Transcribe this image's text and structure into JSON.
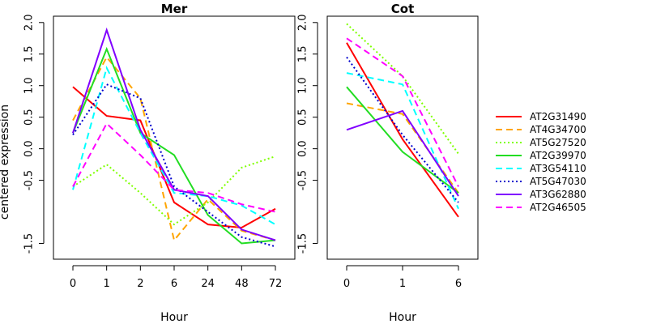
{
  "chart_data": {
    "type": "line",
    "ylabel": "centered expression",
    "ylim": [
      -1.75,
      2.1
    ],
    "yticks": [
      -1.5,
      -0.5,
      0.0,
      0.5,
      1.0,
      1.5,
      2.0
    ],
    "ytick_labels": [
      "-1.5",
      "-0.5",
      "0.0",
      "0.5",
      "1.0",
      "1.5",
      "2.0"
    ],
    "legend_position": "right",
    "grid": false,
    "series_styles": [
      {
        "name": "AT2G31490",
        "color": "#ff0000",
        "dash": "solid"
      },
      {
        "name": "AT4G34700",
        "color": "#ffa500",
        "dash": "dashed"
      },
      {
        "name": "AT5G27520",
        "color": "#7fff00",
        "dash": "dotted"
      },
      {
        "name": "AT2G39970",
        "color": "#22dd22",
        "dash": "solid"
      },
      {
        "name": "AT3G54110",
        "color": "#00ffff",
        "dash": "dashed"
      },
      {
        "name": "AT5G47030",
        "color": "#0000cd",
        "dash": "dotted"
      },
      {
        "name": "AT3G62880",
        "color": "#8000ff",
        "dash": "solid"
      },
      {
        "name": "AT2G46505",
        "color": "#ff00ff",
        "dash": "dashed"
      }
    ],
    "panels": [
      {
        "title": "Mer",
        "xlabel": "Hour",
        "categories": [
          "0",
          "1",
          "2",
          "6",
          "24",
          "48",
          "72"
        ],
        "series": [
          {
            "name": "AT2G31490",
            "values": [
              0.98,
              0.52,
              0.45,
              -0.85,
              -1.2,
              -1.25,
              -0.95
            ]
          },
          {
            "name": "AT4G34700",
            "values": [
              0.45,
              1.45,
              0.8,
              -1.45,
              -0.8,
              -1.3,
              -1.45
            ]
          },
          {
            "name": "AT5G27520",
            "values": [
              -0.6,
              -0.25,
              -0.7,
              -1.2,
              -0.85,
              -0.3,
              -0.12
            ]
          },
          {
            "name": "AT2G39970",
            "values": [
              0.25,
              1.58,
              0.25,
              -0.1,
              -1.05,
              -1.5,
              -1.45
            ]
          },
          {
            "name": "AT3G54110",
            "values": [
              -0.65,
              1.28,
              0.25,
              -0.7,
              -0.75,
              -0.9,
              -1.2
            ]
          },
          {
            "name": "AT5G47030",
            "values": [
              0.22,
              1.02,
              0.8,
              -0.6,
              -1.0,
              -1.4,
              -1.55
            ]
          },
          {
            "name": "AT3G62880",
            "values": [
              0.25,
              1.88,
              0.3,
              -0.65,
              -0.75,
              -1.28,
              -1.45
            ]
          },
          {
            "name": "AT2G46505",
            "values": [
              -0.6,
              0.4,
              -0.1,
              -0.65,
              -0.7,
              -0.88,
              -1.0
            ]
          }
        ]
      },
      {
        "title": "Cot",
        "xlabel": "Hour",
        "categories": [
          "0",
          "1",
          "6"
        ],
        "series": [
          {
            "name": "AT2G31490",
            "values": [
              1.68,
              0.15,
              -1.08
            ]
          },
          {
            "name": "AT4G34700",
            "values": [
              0.72,
              0.55,
              -0.7
            ]
          },
          {
            "name": "AT5G27520",
            "values": [
              1.98,
              1.15,
              -0.08
            ]
          },
          {
            "name": "AT2G39970",
            "values": [
              0.98,
              -0.05,
              -0.7
            ]
          },
          {
            "name": "AT3G54110",
            "values": [
              1.2,
              1.02,
              -0.95
            ]
          },
          {
            "name": "AT5G47030",
            "values": [
              1.45,
              0.22,
              -0.85
            ]
          },
          {
            "name": "AT3G62880",
            "values": [
              0.3,
              0.6,
              -0.75
            ]
          },
          {
            "name": "AT2G46505",
            "values": [
              1.75,
              1.15,
              -0.6
            ]
          }
        ]
      }
    ]
  }
}
